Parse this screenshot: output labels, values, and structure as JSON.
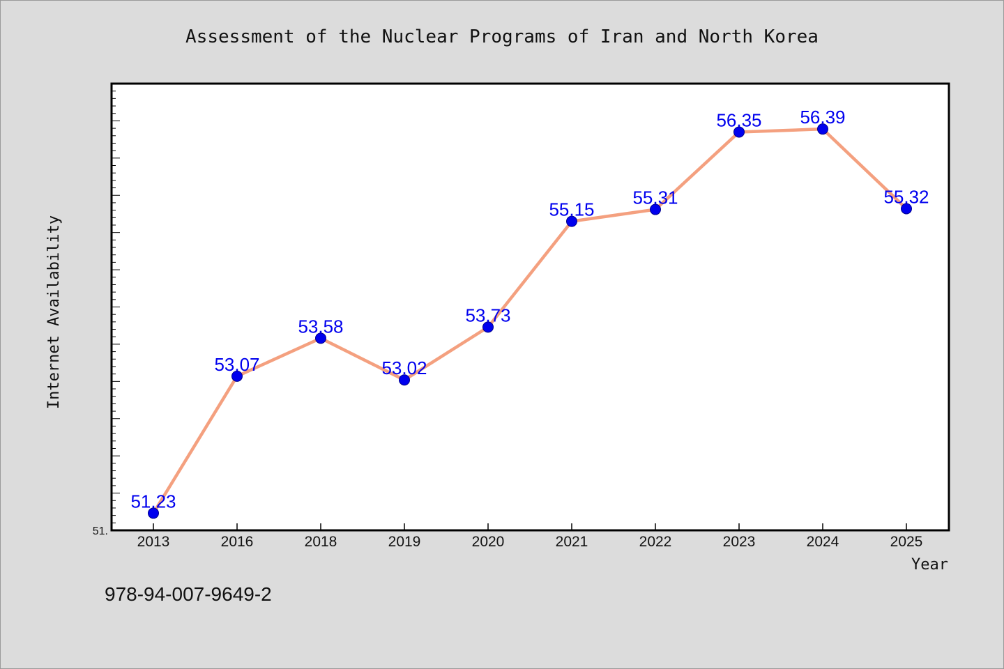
{
  "chart_data": {
    "type": "line",
    "title": "Assessment of the Nuclear Programs of Iran and North Korea",
    "xlabel": "Year",
    "ylabel": "Internet Availability",
    "categories": [
      "2013",
      "2016",
      "2018",
      "2019",
      "2020",
      "2021",
      "2022",
      "2023",
      "2024",
      "2025"
    ],
    "series": [
      {
        "values": [
          51.23,
          53.07,
          53.58,
          53.02,
          53.73,
          55.15,
          55.31,
          56.35,
          56.39,
          55.32
        ],
        "data_labels": [
          "51.23",
          "53.07",
          "53.58",
          "53.02",
          "53.73",
          "55.15",
          "55.31",
          "56.35",
          "56.39",
          "55.32"
        ]
      }
    ],
    "y_tick_label": "51.",
    "ylim": [
      51.0,
      57.0
    ],
    "grid": false,
    "legend": "none",
    "colors": {
      "line": "#f4a07f",
      "marker": "#0000ee",
      "label": "#0000ee",
      "background": "#dcdcdc",
      "plot_bg": "#ffffff"
    }
  },
  "footer_text": "978-94-007-9649-2"
}
